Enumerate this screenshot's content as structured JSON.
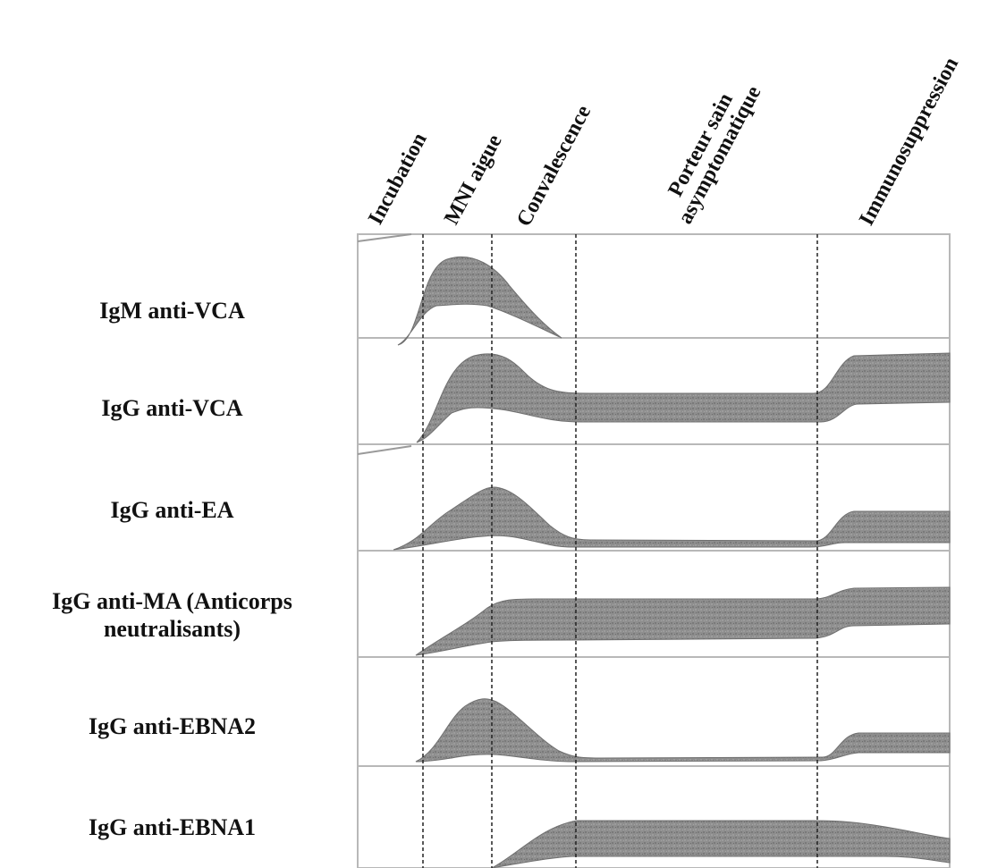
{
  "phases": [
    {
      "id": "incubation",
      "lines": [
        "Incubation"
      ]
    },
    {
      "id": "mni",
      "lines": [
        "MNI aigue"
      ]
    },
    {
      "id": "convalescence",
      "lines": [
        "Convalescence"
      ]
    },
    {
      "id": "porteur",
      "lines": [
        "Porteur sain",
        "asymptomatique"
      ]
    },
    {
      "id": "immuno",
      "lines": [
        "Immunosuppression"
      ]
    }
  ],
  "rows": [
    {
      "id": "igm-anti-vca",
      "lines": [
        "IgM anti-VCA"
      ]
    },
    {
      "id": "igg-anti-vca",
      "lines": [
        "IgG anti-VCA"
      ]
    },
    {
      "id": "igg-anti-ea",
      "lines": [
        "IgG anti-EA"
      ]
    },
    {
      "id": "igg-anti-ma",
      "lines": [
        "IgG anti-MA (Anticorps",
        "neutralisants)"
      ]
    },
    {
      "id": "igg-anti-ebna2",
      "lines": [
        "IgG anti-EBNA2"
      ]
    },
    {
      "id": "igg-anti-ebna1",
      "lines": [
        "IgG anti-EBNA1"
      ]
    }
  ],
  "colors": {
    "band": "#8c8c8c",
    "band_dark": "#6f6f6f",
    "panel_border": "#b8b8b8",
    "divider": "#222222"
  }
}
